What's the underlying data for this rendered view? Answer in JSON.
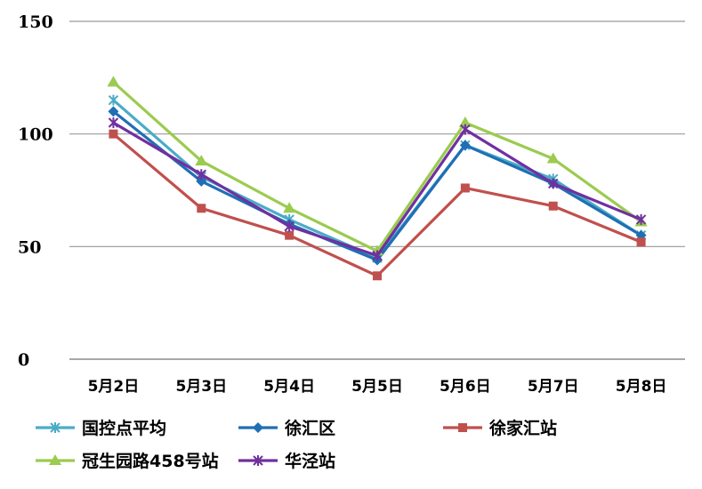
{
  "chart_data": {
    "type": "line",
    "categories": [
      "5月2日",
      "5月3日",
      "5月4日",
      "5月5日",
      "5月6日",
      "5月7日",
      "5月8日"
    ],
    "ylim": [
      0,
      150
    ],
    "yticks": [
      0,
      50,
      100,
      150
    ],
    "grid": true,
    "legend_position": "bottom",
    "series": [
      {
        "name": "国控点平均",
        "color": "#4BACC6",
        "marker": "asterisk",
        "values": [
          115,
          81,
          62,
          45,
          95,
          80,
          55
        ]
      },
      {
        "name": "徐汇区",
        "color": "#1F6FB5",
        "marker": "diamond",
        "values": [
          110,
          79,
          60,
          44,
          95,
          78,
          55
        ]
      },
      {
        "name": "徐家汇站",
        "color": "#C0504D",
        "marker": "square",
        "values": [
          100,
          67,
          55,
          37,
          76,
          68,
          52
        ]
      },
      {
        "name": "冠生园路458号站",
        "color": "#9BCB4F",
        "marker": "triangle",
        "values": [
          123,
          88,
          67,
          48,
          105,
          89,
          61
        ]
      },
      {
        "name": "华泾站",
        "color": "#7030A0",
        "marker": "star",
        "values": [
          105,
          82,
          59,
          46,
          102,
          78,
          62
        ]
      }
    ]
  }
}
